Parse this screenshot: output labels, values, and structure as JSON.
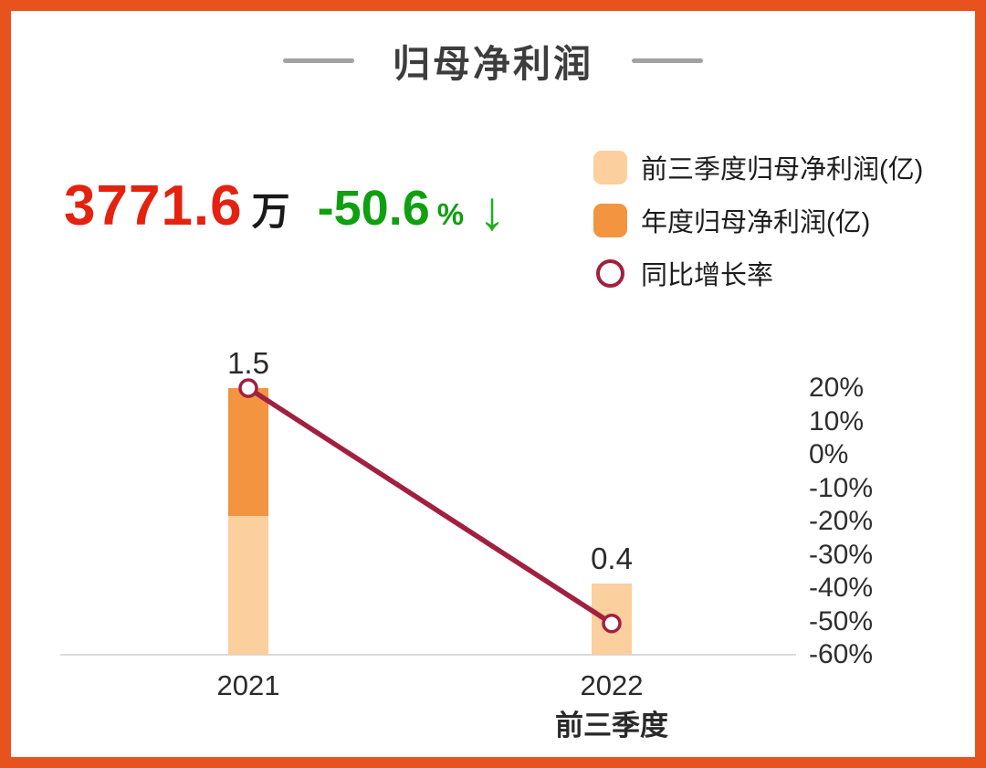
{
  "theme": {
    "border_color": "#e8531d",
    "title_color": "#3d3d3d",
    "value_color": "#e3220f",
    "growth_color": "#0f9f0f",
    "bar_light_color": "#fbcf9e",
    "bar_dark_color": "#f29440",
    "line_color": "#a1203f",
    "axis_line_color": "#dadada"
  },
  "header": {
    "title": "归母净利润"
  },
  "summary": {
    "value": "3771.6",
    "unit": "万",
    "growth": "-50.6",
    "growth_unit": "%",
    "arrow_glyph": "↓",
    "direction": "down"
  },
  "legend": {
    "items": [
      {
        "label": "前三季度归母净利润(亿)",
        "swatch": "light-square"
      },
      {
        "label": "年度归母净利润(亿)",
        "swatch": "dark-square"
      },
      {
        "label": "同比增长率",
        "swatch": "circle-outline"
      }
    ]
  },
  "chart_data": {
    "type": "bar",
    "subtype": "stacked-bar-with-line",
    "title": "归母净利润",
    "categories": [
      "2021",
      "2022前三季度"
    ],
    "series": [
      {
        "name": "前三季度归母净利润(亿)",
        "type": "bar",
        "color": "#fbcf9e",
        "values": [
          0.78,
          0.4
        ]
      },
      {
        "name": "年度归母净利润(亿)",
        "type": "bar",
        "color": "#f29440",
        "values": [
          1.5,
          null
        ]
      },
      {
        "name": "同比增长率",
        "type": "line",
        "color": "#a1203f",
        "values": [
          20,
          -50.6
        ]
      }
    ],
    "bar_labels": [
      "1.5",
      "0.4"
    ],
    "x_labels": [
      [
        "2021"
      ],
      [
        "2022",
        "前三季度"
      ]
    ],
    "y2_ticks": [
      20,
      10,
      0,
      -10,
      -20,
      -30,
      -40,
      -50,
      -60
    ],
    "y2_tick_labels": [
      "20%",
      "10%",
      "0%",
      "-10%",
      "-20%",
      "-30%",
      "-40%",
      "-50%",
      "-60%"
    ],
    "y2_range": [
      -60,
      20
    ],
    "grid": false,
    "legend_position": "top-right"
  }
}
